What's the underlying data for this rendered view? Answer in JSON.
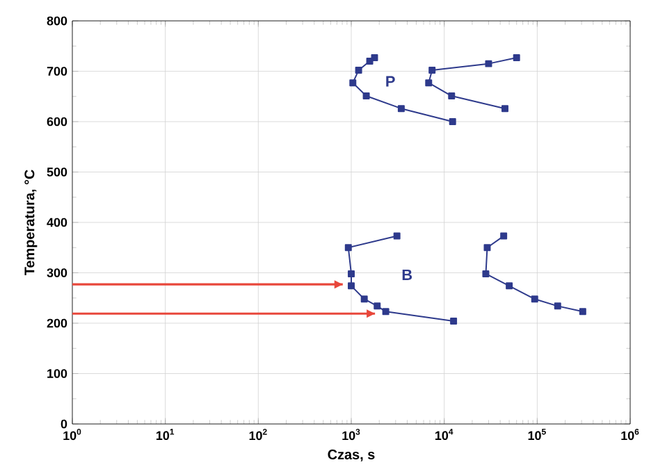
{
  "chart_data": {
    "type": "line",
    "xlabel": "Czas, s",
    "ylabel": "Temperatura, °C",
    "log": "x",
    "xlim": [
      1,
      1000000
    ],
    "ylim": [
      0,
      800
    ],
    "xticks": [
      {
        "value": 1,
        "label": "10$^{0}$"
      },
      {
        "value": 10,
        "label": "10$^{1}$"
      },
      {
        "value": 100,
        "label": "10$^{2}$"
      },
      {
        "value": 1000,
        "label": "10$^{3}$"
      },
      {
        "value": 10000,
        "label": "10$^{4}$"
      },
      {
        "value": 100000,
        "label": "10$^{5}$"
      },
      {
        "value": 1000000,
        "label": "10$^{6}$"
      }
    ],
    "yticks": [
      0,
      100,
      200,
      300,
      400,
      500,
      600,
      700,
      800
    ],
    "grid": true,
    "marker": "square",
    "line_style": "solid",
    "series": [
      {
        "color": "#2e3a8c",
        "x": [
          1780,
          1580,
          1200,
          1040,
          1450,
          3450,
          12300
        ],
        "values": [
          727,
          720,
          702,
          677,
          651,
          626,
          600
        ]
      },
      {
        "color": "#2e3a8c",
        "x": [
          60000,
          30000,
          7400,
          6800,
          12000,
          45000
        ],
        "values": [
          727,
          715,
          702,
          677,
          651,
          626
        ]
      },
      {
        "color": "#2e3a8c",
        "x": [
          3100,
          930,
          1000,
          1000,
          1380,
          1900,
          2350,
          12600
        ],
        "values": [
          373,
          350,
          298,
          274,
          248,
          234,
          223,
          204
        ]
      },
      {
        "color": "#2e3a8c",
        "x": [
          43600,
          29000,
          28000,
          50000,
          94000,
          166000,
          309000
        ],
        "values": [
          373,
          350,
          298,
          274,
          248,
          234,
          223
        ]
      },
      {
        "color": "#e8473b",
        "marker": "none",
        "x": [
          1,
          810
        ],
        "values": [
          277,
          277
        ]
      },
      {
        "color": "#e8473b",
        "marker": "none",
        "x": [
          1,
          1800
        ],
        "values": [
          219,
          219
        ]
      }
    ],
    "annotations": [
      "P",
      "B"
    ]
  }
}
